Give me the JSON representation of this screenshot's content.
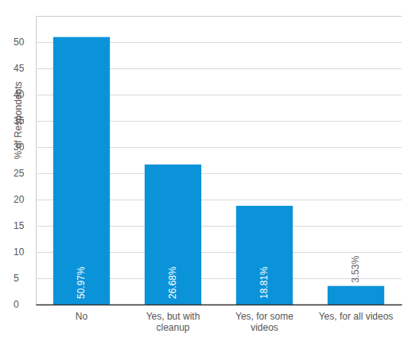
{
  "chart_data": {
    "type": "bar",
    "y_label": "% of Respondents",
    "categories": [
      "No",
      "Yes, but with cleanup",
      "Yes, for some videos",
      "Yes, for all videos"
    ],
    "values": [
      50.97,
      26.68,
      18.81,
      3.53
    ],
    "value_labels": [
      "50.97%",
      "26.68%",
      "18.81%",
      "3.53%"
    ],
    "color": "#0b93d9",
    "ylim": [
      0,
      55
    ],
    "yticks": [
      0,
      5,
      10,
      15,
      20,
      25,
      30,
      35,
      40,
      45,
      50
    ],
    "grid": true,
    "data_labels": true
  }
}
